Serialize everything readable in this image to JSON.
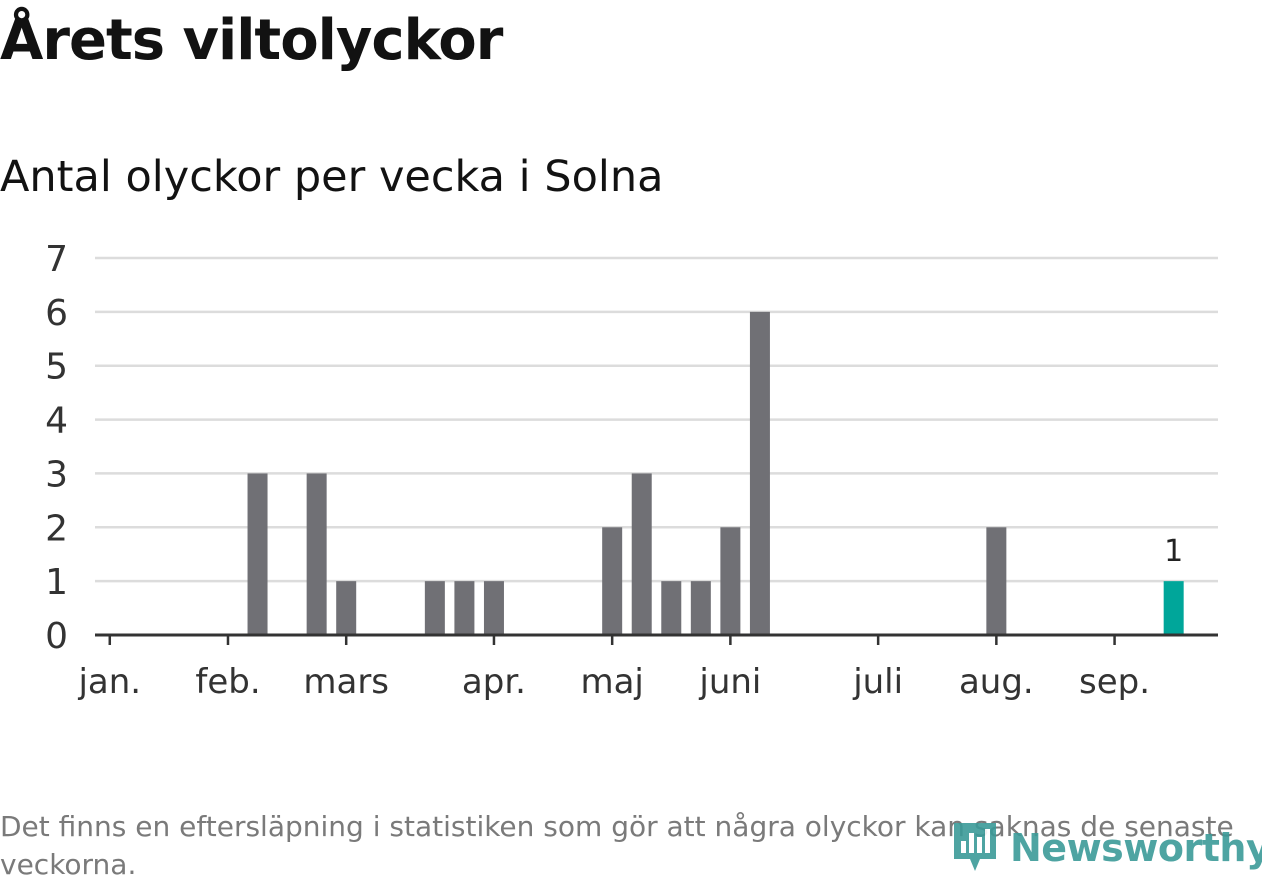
{
  "header": {
    "title": "Årets viltolyckor",
    "subtitle": "Antal olyckor per vecka i Solna"
  },
  "footnote": "Det finns en eftersläpning i statistiken som gör att några olyckor kan saknas de senaste veckorna.",
  "logo": {
    "text": "Newsworthy",
    "icon": "newsworthy-logo-icon"
  },
  "colors": {
    "bar": "#707075",
    "highlight": "#00a69a",
    "grid": "#dcdcdc",
    "axis": "#333333",
    "tick_label": "#333333"
  },
  "chart_data": {
    "type": "bar",
    "title": "Årets viltolyckor",
    "subtitle": "Antal olyckor per vecka i Solna",
    "xlabel": "",
    "ylabel": "",
    "ylim": [
      0,
      7
    ],
    "yticks": [
      0,
      1,
      2,
      3,
      4,
      5,
      6,
      7
    ],
    "grid": true,
    "x_unit": "week",
    "xlim": [
      0.5,
      38.5
    ],
    "month_ticks": [
      {
        "label": "jan.",
        "week": 1
      },
      {
        "label": "feb.",
        "week": 5
      },
      {
        "label": "mars",
        "week": 9
      },
      {
        "label": "apr.",
        "week": 14
      },
      {
        "label": "maj",
        "week": 18
      },
      {
        "label": "juni",
        "week": 22
      },
      {
        "label": "juli",
        "week": 27
      },
      {
        "label": "aug.",
        "week": 31
      },
      {
        "label": "sep.",
        "week": 35
      }
    ],
    "bars": [
      {
        "week": 6,
        "value": 3
      },
      {
        "week": 8,
        "value": 3
      },
      {
        "week": 9,
        "value": 1
      },
      {
        "week": 12,
        "value": 1
      },
      {
        "week": 13,
        "value": 1
      },
      {
        "week": 14,
        "value": 1
      },
      {
        "week": 18,
        "value": 2
      },
      {
        "week": 19,
        "value": 3
      },
      {
        "week": 20,
        "value": 1
      },
      {
        "week": 21,
        "value": 1
      },
      {
        "week": 22,
        "value": 2
      },
      {
        "week": 23,
        "value": 6
      },
      {
        "week": 31,
        "value": 2
      },
      {
        "week": 37,
        "value": 1,
        "highlight": true,
        "label": "1"
      }
    ]
  }
}
